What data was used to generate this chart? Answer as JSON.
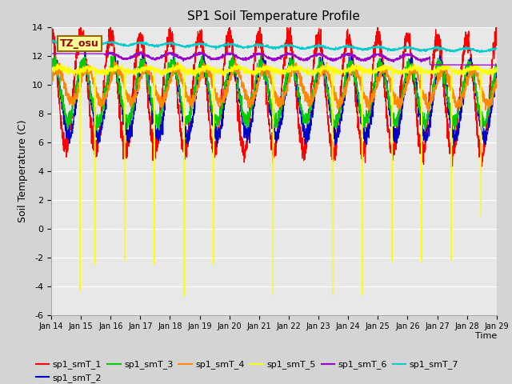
{
  "title": "SP1 Soil Temperature Profile",
  "xlabel": "Time",
  "ylabel": "Soil Temperature (C)",
  "ylim": [
    -6,
    14
  ],
  "yticks": [
    -6,
    -4,
    -2,
    0,
    2,
    4,
    6,
    8,
    10,
    12,
    14
  ],
  "x_tick_labels": [
    "Jan 14",
    "Jan 15",
    "Jan 16",
    "Jan 17",
    "Jan 18",
    "Jan 19",
    "Jan 20",
    "Jan 21",
    "Jan 22",
    "Jan 23",
    "Jan 24",
    "Jan 25",
    "Jan 26",
    "Jan 27",
    "Jan 28",
    "Jan 29"
  ],
  "series_colors": [
    "#ff0000",
    "#0000cc",
    "#00cc00",
    "#ff8800",
    "#ffff00",
    "#9900cc",
    "#00cccc"
  ],
  "series_labels": [
    "sp1_smT_1",
    "sp1_smT_2",
    "sp1_smT_3",
    "sp1_smT_4",
    "sp1_smT_5",
    "sp1_smT_6",
    "sp1_smT_7"
  ],
  "fig_bg_color": "#d4d4d4",
  "plot_bg_color": "#e8e8e8",
  "annotation_text": "TZ_osu",
  "annotation_bg": "#ffff99",
  "annotation_border": "#996600",
  "grid_color": "#ffffff",
  "title_fontsize": 11,
  "axis_label_fontsize": 9,
  "tick_fontsize": 8,
  "legend_fontsize": 8
}
